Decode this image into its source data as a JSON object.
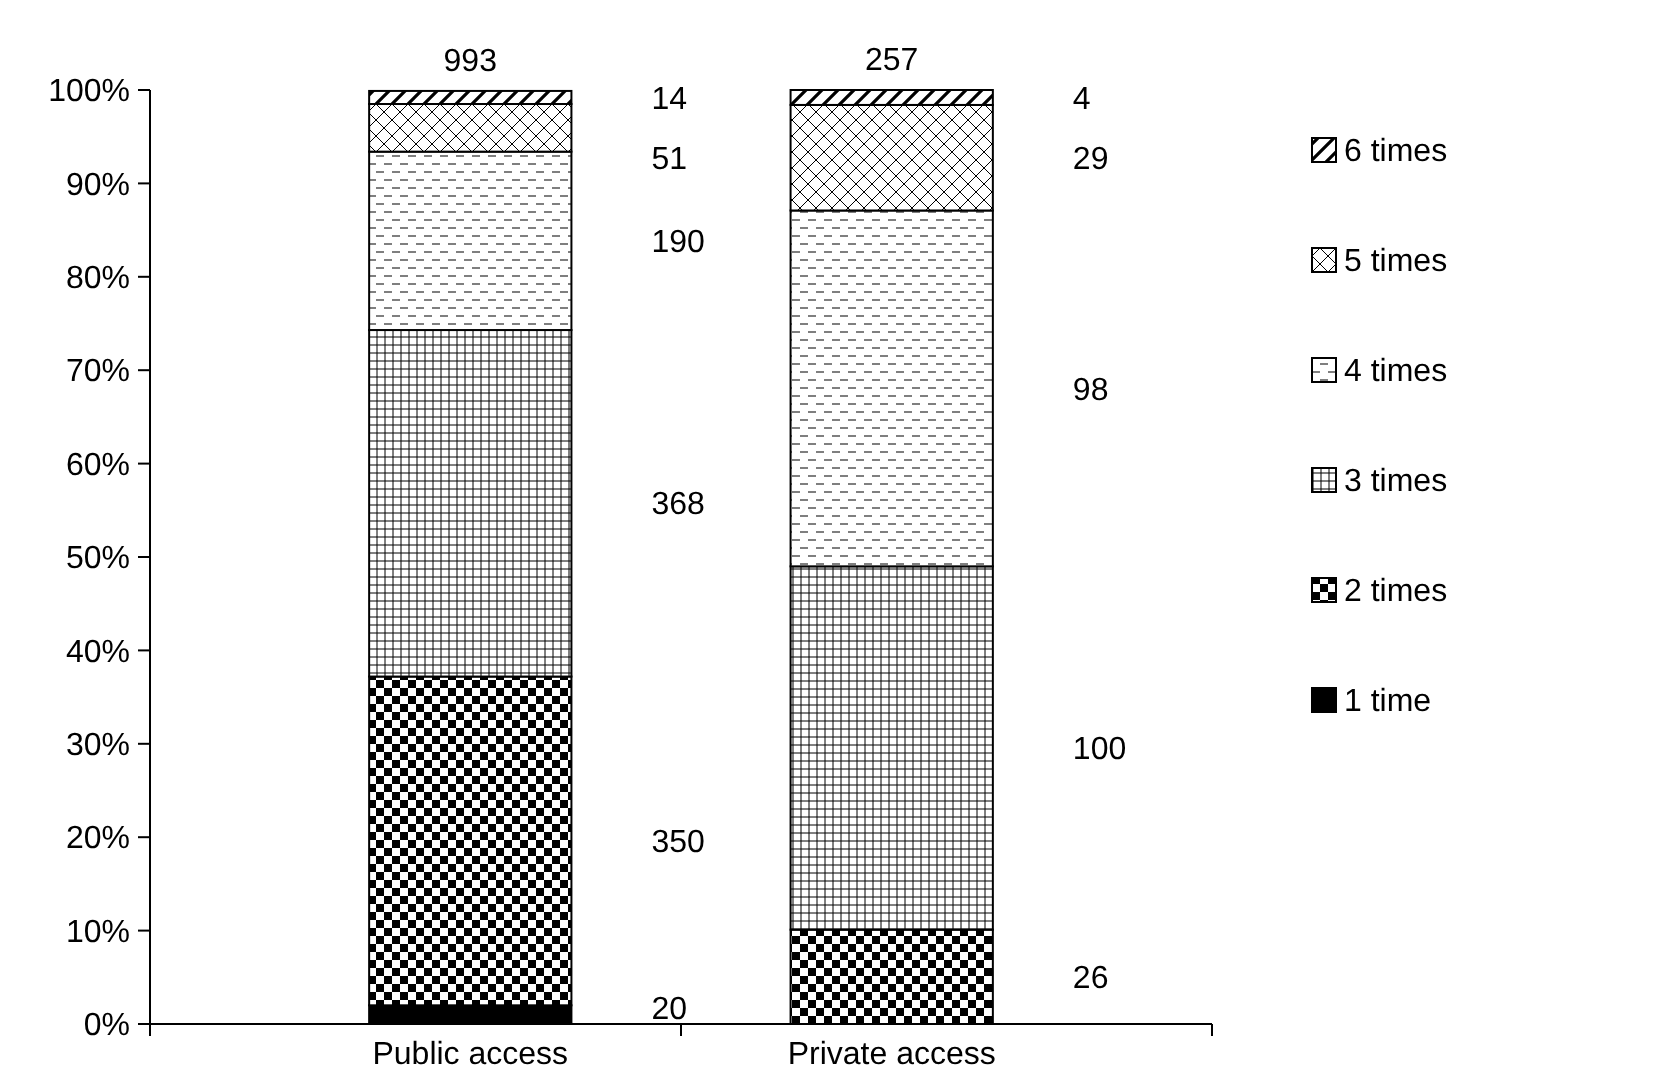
{
  "chart_data": {
    "type": "bar",
    "stacked": true,
    "categories": [
      "Public access",
      "Private access"
    ],
    "ylim": [
      0,
      100
    ],
    "yticks": [
      {
        "value": 0,
        "label": "0%"
      },
      {
        "value": 10,
        "label": "10%"
      },
      {
        "value": 20,
        "label": "20%"
      },
      {
        "value": 30,
        "label": "30%"
      },
      {
        "value": 40,
        "label": "40%"
      },
      {
        "value": 50,
        "label": "50%"
      },
      {
        "value": 60,
        "label": "60%"
      },
      {
        "value": 70,
        "label": "70%"
      },
      {
        "value": 80,
        "label": "80%"
      },
      {
        "value": 90,
        "label": "90%"
      },
      {
        "value": 100,
        "label": "100%"
      }
    ],
    "grid": false,
    "legend": "right",
    "series": [
      {
        "name": "1 time",
        "color": "#000000",
        "values": [
          2.0,
          0
        ]
      },
      {
        "name": "2 times",
        "color": "#000000",
        "values": [
          35.2,
          10.1
        ]
      },
      {
        "name": "3 times",
        "color": "#000000",
        "values": [
          37.1,
          38.9
        ]
      },
      {
        "name": "4 times",
        "color": "#000000",
        "values": [
          19.1,
          38.1
        ]
      },
      {
        "name": "5 times",
        "color": "#000000",
        "values": [
          5.1,
          11.3
        ]
      },
      {
        "name": "6 times",
        "color": "#000000",
        "values": [
          1.4,
          1.6
        ]
      }
    ],
    "annotations": [
      "993",
      "257",
      "20",
      "350",
      "368",
      "190",
      "51",
      "14",
      "26",
      "100",
      "98",
      "29",
      "4"
    ]
  }
}
